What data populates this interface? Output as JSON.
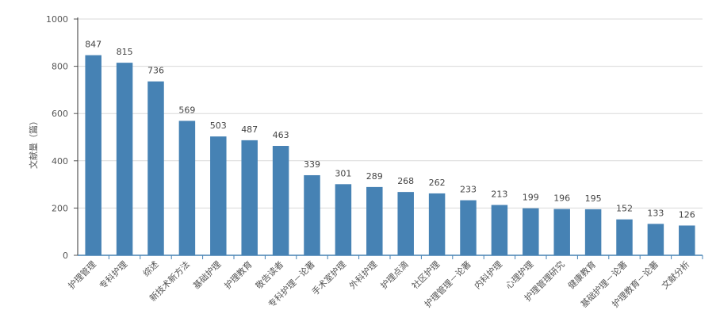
{
  "chart_data": {
    "type": "bar",
    "ylabel": "文献量（篇）",
    "xlabel": "",
    "ylim": [
      0,
      1000
    ],
    "yticks": [
      0,
      200,
      400,
      600,
      800,
      1000
    ],
    "grid": true,
    "bar_color": "#4682b4",
    "categories": [
      "护理管理",
      "专科护理",
      "综述",
      "新技术新方法",
      "基础护理",
      "护理教育",
      "敬告读者",
      "专科护理－论著",
      "手术室护理",
      "外科护理",
      "护理点滴",
      "社区护理",
      "护理管理－论著",
      "内科护理",
      "心理护理",
      "护理管理研究",
      "健康教育",
      "基础护理－论著",
      "护理教育－论著",
      "文献分析"
    ],
    "values": [
      847,
      815,
      736,
      569,
      503,
      487,
      463,
      339,
      301,
      289,
      268,
      262,
      233,
      213,
      199,
      196,
      195,
      152,
      133,
      126
    ]
  }
}
